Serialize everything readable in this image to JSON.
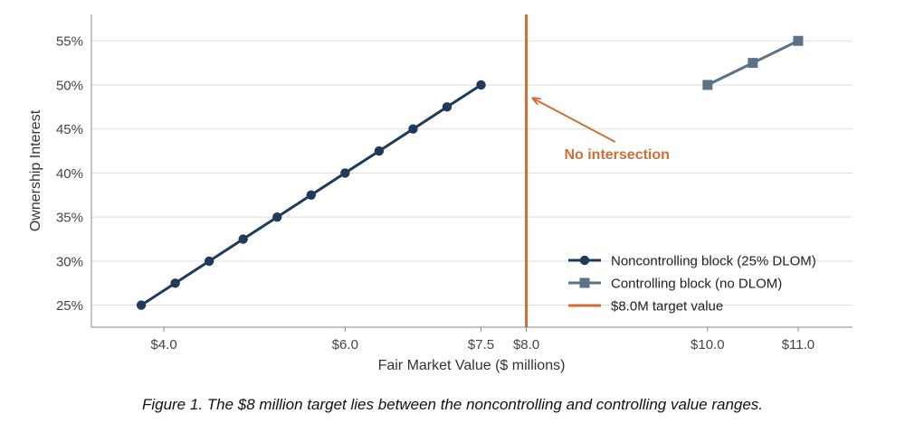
{
  "chart_data": {
    "type": "line",
    "xlabel": "Fair Market Value ($ millions)",
    "ylabel": "Ownership Interest",
    "xlim": [
      3.2,
      11.6
    ],
    "ylim": [
      22.5,
      58
    ],
    "x_ticks": [
      {
        "value": 4.0,
        "label": "$4.0"
      },
      {
        "value": 6.0,
        "label": "$6.0"
      },
      {
        "value": 7.5,
        "label": "$7.5"
      },
      {
        "value": 8.0,
        "label": "$8.0"
      },
      {
        "value": 10.0,
        "label": "$10.0"
      },
      {
        "value": 11.0,
        "label": "$11.0"
      }
    ],
    "y_ticks": [
      {
        "value": 25,
        "label": "25%"
      },
      {
        "value": 30,
        "label": "30%"
      },
      {
        "value": 35,
        "label": "35%"
      },
      {
        "value": 40,
        "label": "40%"
      },
      {
        "value": 45,
        "label": "45%"
      },
      {
        "value": 50,
        "label": "50%"
      },
      {
        "value": 55,
        "label": "55%"
      }
    ],
    "grid": "horizontal",
    "series": [
      {
        "name": "Noncontrolling block (25% DLOM)",
        "color": "#1f3a5a",
        "marker": "circle",
        "x": [
          3.75,
          4.125,
          4.5,
          4.875,
          5.25,
          5.625,
          6.0,
          6.375,
          6.75,
          7.125,
          7.5
        ],
        "y": [
          25,
          27.5,
          30,
          32.5,
          35,
          37.5,
          40,
          42.5,
          45,
          47.5,
          50
        ]
      },
      {
        "name": "Controlling block (no DLOM)",
        "color": "#5b7289",
        "marker": "square",
        "x": [
          10.0,
          10.5,
          11.0
        ],
        "y": [
          50,
          52.5,
          55
        ]
      }
    ],
    "reference_line": {
      "name": "$8.0M target value",
      "x": 8.0,
      "color": "#cf6f35"
    },
    "annotation": {
      "text": "No intersection",
      "arrow_target": {
        "x": 8.05,
        "y": 48.5
      },
      "text_position": {
        "x": 9.0,
        "y": 42.2
      },
      "color": "#cf6f35"
    },
    "legend_position": "bottom-right"
  },
  "caption": "Figure 1. The $8 million target lies between the noncontrolling and controlling value ranges."
}
